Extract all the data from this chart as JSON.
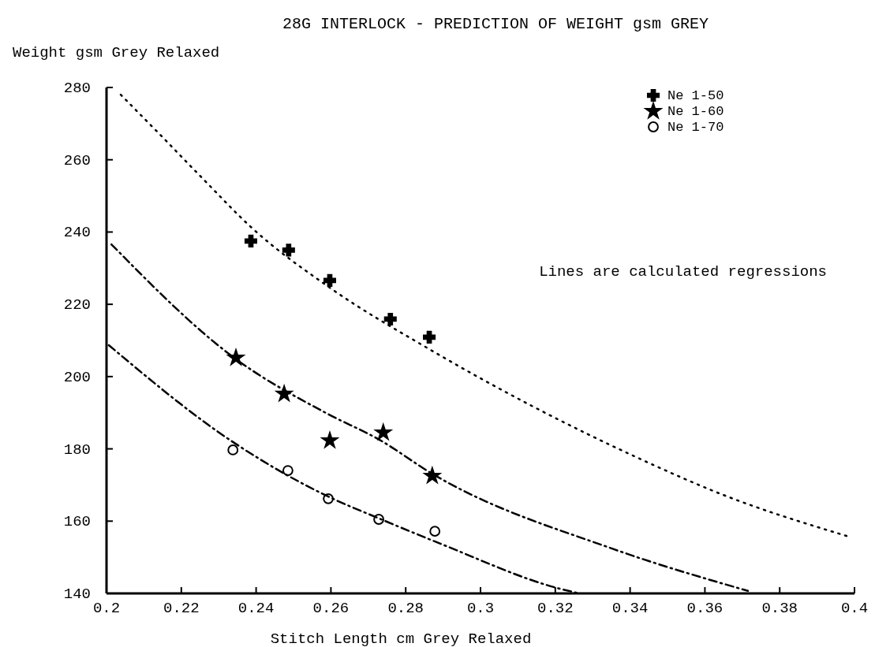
{
  "chart_data": {
    "type": "scatter",
    "title": "28G INTERLOCK - PREDICTION OF WEIGHT gsm GREY",
    "xlabel": "Stitch Length cm Grey Relaxed",
    "ylabel": "Weight gsm Grey Relaxed",
    "annotations": [
      "Lines are calculated regressions"
    ],
    "xlim": [
      0.2,
      0.4
    ],
    "xticks": [
      0.2,
      0.22,
      0.24,
      0.26,
      0.28,
      0.3,
      0.32,
      0.34,
      0.36,
      0.38,
      0.4
    ],
    "ylim": [
      140,
      280
    ],
    "yticks": [
      140,
      160,
      180,
      200,
      220,
      240,
      260,
      280
    ],
    "grid": false,
    "legend": "top right",
    "series": [
      {
        "name": "Ne 1-50",
        "marker": "cross",
        "color": "#000000",
        "x": [
          0.2386,
          0.2487,
          0.2597,
          0.2759,
          0.2863
        ],
        "values": [
          237.5,
          235,
          226.6,
          215.9,
          210.9
        ]
      },
      {
        "name": "Ne 1-60",
        "marker": "star",
        "color": "#000000",
        "x": [
          0.2346,
          0.2475,
          0.2597,
          0.274,
          0.2871
        ],
        "values": [
          205.2,
          195.2,
          182.3,
          184.5,
          172.5
        ]
      },
      {
        "name": "Ne 1-70",
        "marker": "circle",
        "color": "#000000",
        "x": [
          0.2338,
          0.2485,
          0.2593,
          0.2728,
          0.2878
        ],
        "values": [
          179.7,
          174,
          166.2,
          160.5,
          157.2
        ]
      },
      {
        "type": "line",
        "line_style": "dotted",
        "color": "#000000",
        "x": [
          0.2038,
          0.2154,
          0.226,
          0.2386,
          0.2597,
          0.2863,
          0.3425,
          0.3643,
          0.3979
        ],
        "values": [
          278,
          265.8,
          254.5,
          241.4,
          224.6,
          207.6,
          177.3,
          167.5,
          155.9
        ]
      },
      {
        "type": "line",
        "line_style": "dashed",
        "color": "#000000",
        "x": [
          0.2013,
          0.2344,
          0.2591,
          0.273,
          0.2871,
          0.3352,
          0.3715
        ],
        "values": [
          236.6,
          205,
          189.7,
          182.5,
          173.1,
          152.4,
          140.7
        ]
      },
      {
        "type": "line",
        "line_style": "dashed",
        "color": "#000000",
        "x": [
          0.2006,
          0.2338,
          0.2597,
          0.273,
          0.2899,
          0.3205,
          0.3264
        ],
        "values": [
          208.7,
          181.9,
          166.6,
          160.7,
          153.5,
          141.5,
          140
        ]
      }
    ]
  }
}
